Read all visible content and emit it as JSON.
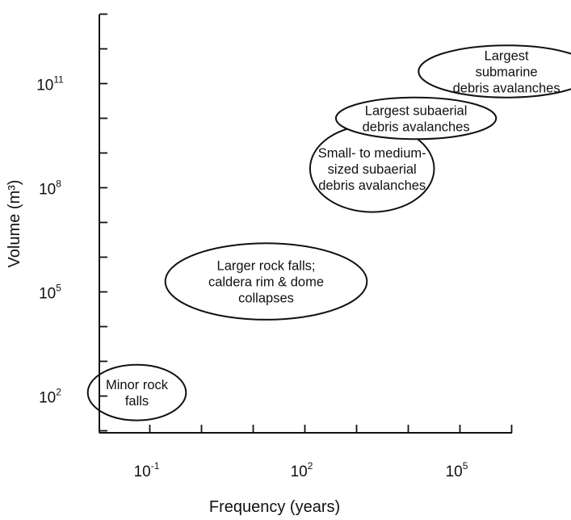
{
  "chart_data": {
    "type": "scatter",
    "title": "",
    "xlabel": "Frequency (years)",
    "ylabel": "Volume (m³)",
    "x_scale": "log",
    "y_scale": "log",
    "x_ticks": [
      {
        "base": "10",
        "exp": "-1",
        "value": 0.1
      },
      {
        "base": "10",
        "exp": "2",
        "value": 100
      },
      {
        "base": "10",
        "exp": "5",
        "value": 100000
      }
    ],
    "y_ticks": [
      {
        "base": "10",
        "exp": "2",
        "value": 100
      },
      {
        "base": "10",
        "exp": "5",
        "value": 100000
      },
      {
        "base": "10",
        "exp": "8",
        "value": 100000000
      },
      {
        "base": "10",
        "exp": "11",
        "value": 100000000000
      }
    ],
    "xlim_log10": [
      -2.4,
      6.5
    ],
    "ylim_log10": [
      -0.4,
      13.5
    ],
    "grid": false,
    "regions": [
      {
        "lines": [
          "Minor rock",
          "falls"
        ],
        "x_log10": [
          -2.2,
          -0.3
        ],
        "y_log10": [
          1.3,
          2.9
        ]
      },
      {
        "lines": [
          "Larger rock falls;",
          "caldera rim & dome",
          "collapses"
        ],
        "x_log10": [
          -0.7,
          3.2
        ],
        "y_log10": [
          4.2,
          6.4
        ]
      },
      {
        "lines": [
          "Small- to medium-",
          "sized subaerial",
          "debris avalanches"
        ],
        "x_log10": [
          2.1,
          4.5
        ],
        "y_log10": [
          7.3,
          9.8
        ]
      },
      {
        "lines": [
          "Largest subaerial",
          "debris avalanches"
        ],
        "x_log10": [
          2.6,
          5.7
        ],
        "y_log10": [
          9.4,
          10.6
        ]
      },
      {
        "lines": [
          "Largest",
          "submarine",
          "debris avalanches"
        ],
        "x_log10": [
          4.2,
          7.6
        ],
        "y_log10": [
          10.6,
          12.1
        ]
      }
    ]
  }
}
